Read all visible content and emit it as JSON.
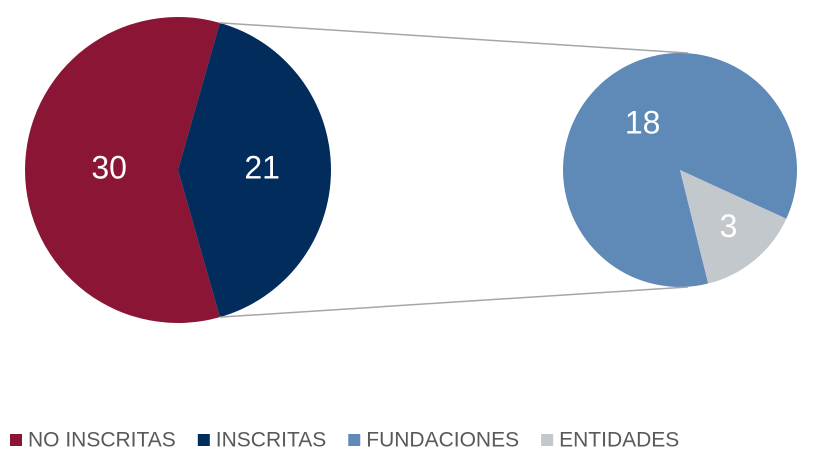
{
  "chart_data": {
    "type": "pie-of-pie",
    "categories": [
      "NO INSCRITAS",
      "INSCRITAS"
    ],
    "values": [
      30,
      21
    ],
    "colors": [
      "#8b1535",
      "#022c5c"
    ],
    "breakdown": {
      "categories": [
        "FUNDACIONES",
        "ENTIDADES"
      ],
      "values": [
        18,
        3
      ],
      "colors": [
        "#5f8ab7",
        "#c3c8cc"
      ]
    },
    "legend": "bottom"
  }
}
